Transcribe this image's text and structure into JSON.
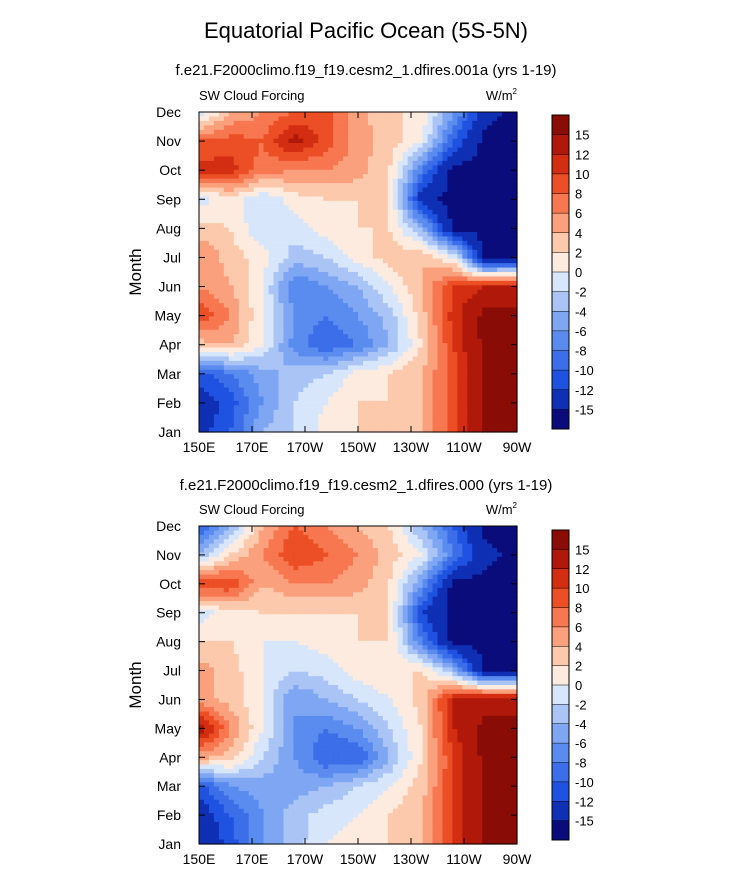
{
  "page_title": "Equatorial Pacific Ocean (5S-5N)",
  "chart_data": [
    {
      "type": "heatmap",
      "subtitle": "f.e21.F2000climo.f19_f19.cesm2_1.dfires.001a (yrs 1-19)",
      "left_label": "SW Cloud Forcing",
      "units": "W/m",
      "units_sup": "2",
      "ylabel": "Month",
      "x_ticks": [
        "150E",
        "170E",
        "170W",
        "150W",
        "130W",
        "110W",
        "90W"
      ],
      "y_ticks": [
        "Jan",
        "Feb",
        "Mar",
        "Apr",
        "May",
        "Jun",
        "Jul",
        "Aug",
        "Sep",
        "Oct",
        "Nov",
        "Dec"
      ],
      "colorbar_labels": [
        "-15",
        "-12",
        "-10",
        "-8",
        "-6",
        "-4",
        "-2",
        "0",
        "2",
        "4",
        "6",
        "8",
        "10",
        "12",
        "15"
      ],
      "colorbar_colors": [
        "#0b0c7c",
        "#0f2fb4",
        "#1f52e0",
        "#3b6ee8",
        "#5a8cf0",
        "#7fa6f2",
        "#a9c4f5",
        "#d7e6fa",
        "#fdebe0",
        "#fcc9ad",
        "#fba07d",
        "#f77750",
        "#ec4f25",
        "#d42e12",
        "#b0180a",
        "#8a0c06"
      ],
      "grid": [
        [
          -13,
          -10,
          -4,
          -2,
          1,
          2,
          2,
          4,
          9,
          16,
          16
        ],
        [
          -14,
          -11,
          -6,
          -2,
          0,
          2,
          2,
          4,
          9,
          16,
          16
        ],
        [
          -11,
          -8,
          -5,
          -3,
          -2,
          1,
          2,
          4,
          9,
          16,
          16
        ],
        [
          3,
          4,
          0,
          -7,
          -10,
          -8,
          -4,
          2,
          10,
          16,
          16
        ],
        [
          10,
          6,
          0,
          -6,
          -8,
          -6,
          -3,
          3,
          11,
          16,
          16
        ],
        [
          6,
          4,
          0,
          -8,
          -6,
          -4,
          0,
          4,
          10,
          12,
          13
        ],
        [
          6,
          3,
          1,
          -3,
          -2,
          1,
          3,
          4,
          0,
          -16,
          -16
        ],
        [
          3,
          2,
          -2,
          -1,
          1,
          2,
          2,
          -4,
          -16,
          -16,
          -16
        ],
        [
          -1,
          1,
          -2,
          1,
          2,
          2,
          2,
          -14,
          -16,
          -16,
          -16
        ],
        [
          11,
          11,
          7,
          6,
          6,
          5,
          2,
          -8,
          -16,
          -16,
          -16
        ],
        [
          8,
          9,
          8,
          13,
          9,
          5,
          3,
          0,
          -10,
          -16,
          -16
        ],
        [
          -2,
          4,
          6,
          8,
          9,
          5,
          2,
          2,
          -6,
          -14,
          -16
        ]
      ]
    },
    {
      "type": "heatmap",
      "subtitle": "f.e21.F2000climo.f19_f19.cesm2_1.dfires.000 (yrs 1-19)",
      "left_label": "SW Cloud Forcing",
      "units": "W/m",
      "units_sup": "2",
      "ylabel": "Month",
      "x_ticks": [
        "150E",
        "170E",
        "170W",
        "150W",
        "130W",
        "110W",
        "90W"
      ],
      "y_ticks": [
        "Jan",
        "Feb",
        "Mar",
        "Apr",
        "May",
        "Jun",
        "Jul",
        "Aug",
        "Sep",
        "Oct",
        "Nov",
        "Dec"
      ],
      "colorbar_labels": [
        "-15",
        "-12",
        "-10",
        "-8",
        "-6",
        "-4",
        "-2",
        "0",
        "2",
        "4",
        "6",
        "8",
        "10",
        "12",
        "15"
      ],
      "colorbar_colors": [
        "#0b0c7c",
        "#0f2fb4",
        "#1f52e0",
        "#3b6ee8",
        "#5a8cf0",
        "#7fa6f2",
        "#a9c4f5",
        "#d7e6fa",
        "#fdebe0",
        "#fcc9ad",
        "#fba07d",
        "#f77750",
        "#ec4f25",
        "#d42e12",
        "#b0180a",
        "#8a0c06"
      ],
      "grid": [
        [
          -15,
          -11,
          -6,
          -3,
          0,
          1,
          2,
          4,
          10,
          16,
          16
        ],
        [
          -14,
          -10,
          -6,
          -3,
          -1,
          0,
          2,
          4,
          10,
          16,
          16
        ],
        [
          -11,
          -6,
          -5,
          -5,
          -4,
          -2,
          0,
          3,
          10,
          16,
          16
        ],
        [
          5,
          3,
          -2,
          -6,
          -10,
          -10,
          -4,
          2,
          10,
          16,
          16
        ],
        [
          14,
          6,
          0,
          -6,
          -8,
          -6,
          -2,
          2,
          12,
          16,
          16
        ],
        [
          5,
          3,
          0,
          -6,
          -4,
          -2,
          0,
          3,
          12,
          14,
          14
        ],
        [
          5,
          3,
          0,
          -2,
          -1,
          1,
          2,
          2,
          -4,
          -16,
          -16
        ],
        [
          2,
          2,
          0,
          0,
          1,
          2,
          2,
          -8,
          -16,
          -16,
          -16
        ],
        [
          -1,
          1,
          2,
          2,
          2,
          2,
          2,
          -12,
          -16,
          -16,
          -16
        ],
        [
          10,
          10,
          4,
          6,
          6,
          5,
          2,
          -6,
          -16,
          -16,
          -16
        ],
        [
          -4,
          2,
          6,
          10,
          8,
          6,
          3,
          0,
          -8,
          -14,
          -16
        ],
        [
          -10,
          -4,
          4,
          8,
          6,
          4,
          2,
          -4,
          -10,
          -16,
          -16
        ]
      ]
    }
  ]
}
